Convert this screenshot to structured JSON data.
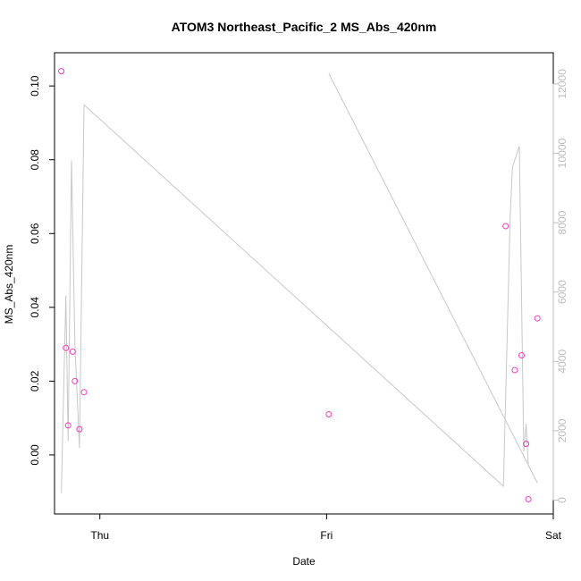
{
  "chart_data": {
    "type": "scatter",
    "title": "ATOM3 Northeast_Pacific_2 MS_Abs_420nm",
    "xlabel": "Date",
    "ylabel": "MS_Abs_420nm",
    "x_ticks": [
      "Thu",
      "Fri",
      "Sat"
    ],
    "y_left_ticks": [
      "0.00",
      "0.02",
      "0.04",
      "0.06",
      "0.08",
      "0.10"
    ],
    "y_right_ticks": [
      "0",
      "2000",
      "4000",
      "6000",
      "8000",
      "10000",
      "12000"
    ],
    "x_range_days": [
      -0.2,
      2.0
    ],
    "y_left_range": [
      -0.016,
      0.109
    ],
    "y_right_range": [
      -400,
      12900
    ],
    "grid": false,
    "legend": "none",
    "colors": {
      "points": "#ee3ebe",
      "altitude_line": "#c8c8c8",
      "right_axis": "#bdbdbd"
    },
    "series": [
      {
        "axis": "left",
        "style": "points",
        "points": [
          {
            "x": -0.17,
            "y": 0.104
          },
          {
            "x": -0.15,
            "y": 0.029
          },
          {
            "x": -0.14,
            "y": 0.008
          },
          {
            "x": -0.12,
            "y": 0.028
          },
          {
            "x": -0.11,
            "y": 0.02
          },
          {
            "x": -0.09,
            "y": 0.007
          },
          {
            "x": -0.07,
            "y": 0.017
          },
          {
            "x": 1.01,
            "y": 0.011
          },
          {
            "x": 1.79,
            "y": 0.062
          },
          {
            "x": 1.83,
            "y": 0.023
          },
          {
            "x": 1.86,
            "y": 0.027
          },
          {
            "x": 1.88,
            "y": 0.003
          },
          {
            "x": 1.89,
            "y": -0.012
          },
          {
            "x": 1.93,
            "y": 0.037
          }
        ]
      },
      {
        "axis": "right",
        "style": "line",
        "points": [
          {
            "x": -0.17,
            "y": 200
          },
          {
            "x": -0.15,
            "y": 5900
          },
          {
            "x": -0.14,
            "y": 1700
          },
          {
            "x": -0.125,
            "y": 9800
          },
          {
            "x": -0.11,
            "y": 4500
          },
          {
            "x": -0.09,
            "y": 1500
          },
          {
            "x": -0.07,
            "y": 11400
          },
          {
            "x": 1.78,
            "y": 400
          },
          {
            "x": 1.81,
            "y": 8200
          },
          {
            "x": 1.82,
            "y": 9600
          },
          {
            "x": 1.85,
            "y": 10200
          },
          {
            "x": 1.87,
            "y": 1400
          },
          {
            "x": 1.88,
            "y": 2200
          },
          {
            "x": 1.89,
            "y": 1000
          },
          {
            "x": 1.93,
            "y": 500
          },
          {
            "x": 1.01,
            "y": 12300
          }
        ]
      }
    ]
  }
}
